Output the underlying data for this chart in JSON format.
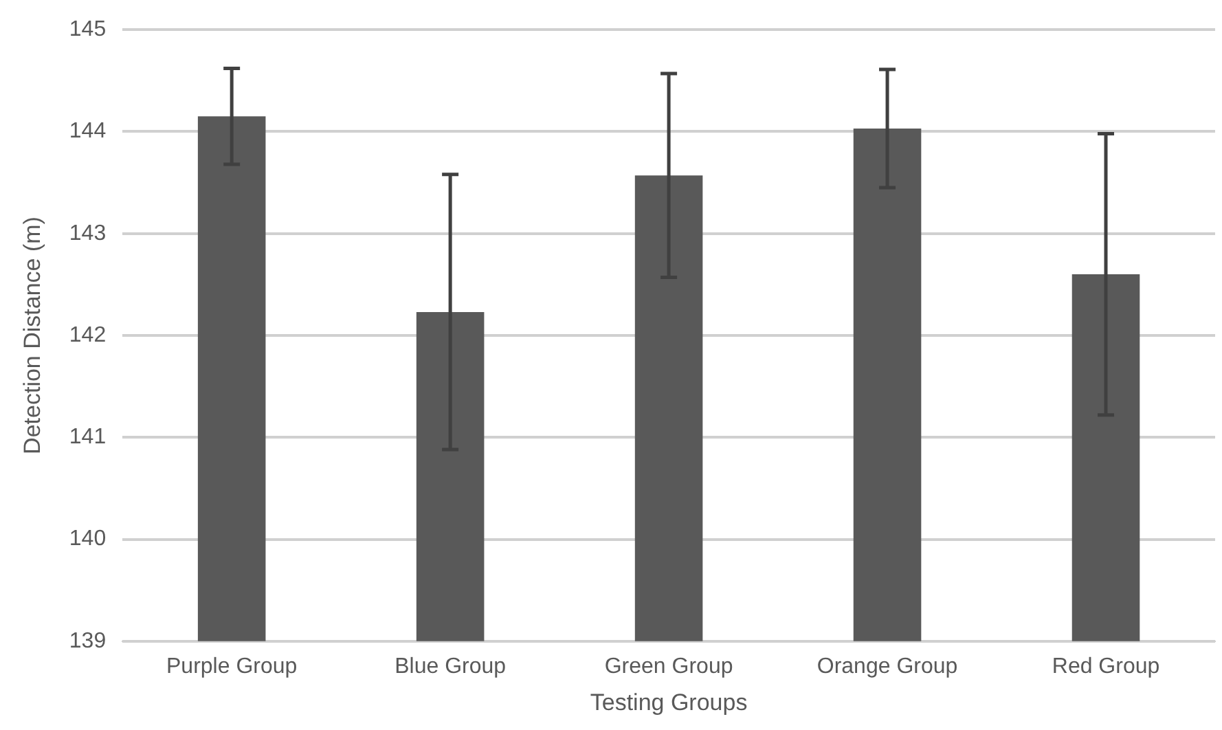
{
  "chart_data": {
    "type": "bar",
    "xlabel": "Testing Groups",
    "ylabel": "Detection Distance (m)",
    "categories": [
      "Purple Group",
      "Blue Group",
      "Green Group",
      "Orange Group",
      "Red Group"
    ],
    "values": [
      144.15,
      142.23,
      143.57,
      144.03,
      142.6
    ],
    "errors": [
      0.47,
      1.35,
      1.0,
      0.58,
      1.38
    ],
    "color": "#595959",
    "ylim": [
      139,
      145
    ],
    "yticks": [
      139,
      140,
      141,
      142,
      143,
      144,
      145
    ],
    "grid": "y",
    "legend": false
  }
}
